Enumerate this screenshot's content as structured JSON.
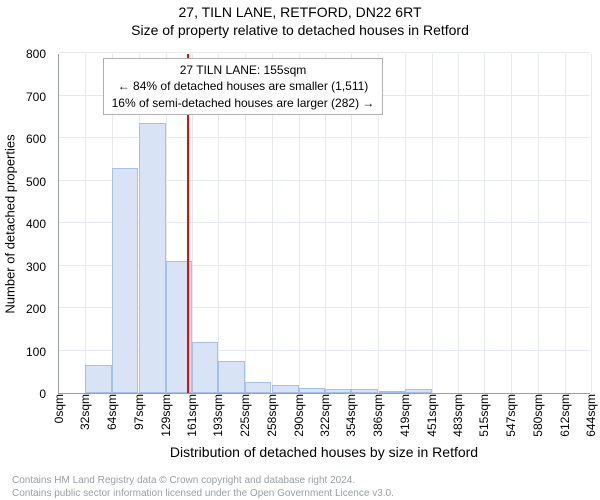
{
  "title": "27, TILN LANE, RETFORD, DN22 6RT",
  "subtitle": "Size of property relative to detached houses in Retford",
  "chart": {
    "type": "histogram",
    "ylabel": "Number of detached properties",
    "xlabel": "Distribution of detached houses by size in Retford",
    "ylim": [
      0,
      800
    ],
    "xlim": [
      0,
      644
    ],
    "y_ticks": [
      0,
      100,
      200,
      300,
      400,
      500,
      600,
      700,
      800
    ],
    "x_ticks": [
      0,
      32,
      64,
      97,
      129,
      161,
      193,
      225,
      258,
      290,
      322,
      354,
      386,
      419,
      451,
      483,
      515,
      547,
      580,
      612,
      644
    ],
    "x_tick_unit": "sqm",
    "bars_x": [
      16,
      48,
      80,
      113,
      145,
      177,
      209,
      241,
      274,
      306,
      338,
      370,
      403,
      435
    ],
    "bars_y": [
      0,
      65,
      530,
      635,
      310,
      120,
      75,
      25,
      20,
      12,
      10,
      10,
      5,
      10
    ],
    "bar_width_value": 32,
    "bar_fill": "#d8e3f5",
    "bar_border": "#a7c0e8",
    "grid_color": "#e6e9ef",
    "axis_color": "#9aa0a6",
    "background_color": "#ffffff",
    "reference_line_x": 155,
    "reference_line_color": "#ff0000",
    "title_fontsize": 14,
    "axis_label_fontsize": 13,
    "tick_fontsize": 12
  },
  "annotation": {
    "line1": "27 TILN LANE: 155sqm",
    "line2": "← 84% of detached houses are smaller (1,511)",
    "line3": "16% of semi-detached houses are larger (282) →",
    "fontsize": 12
  },
  "footer": {
    "line1": "Contains HM Land Registry data © Crown copyright and database right 2024.",
    "line2": "Contains public sector information licensed under the Open Government Licence v3.0.",
    "color": "#9aa0a6",
    "fontsize": 10
  }
}
